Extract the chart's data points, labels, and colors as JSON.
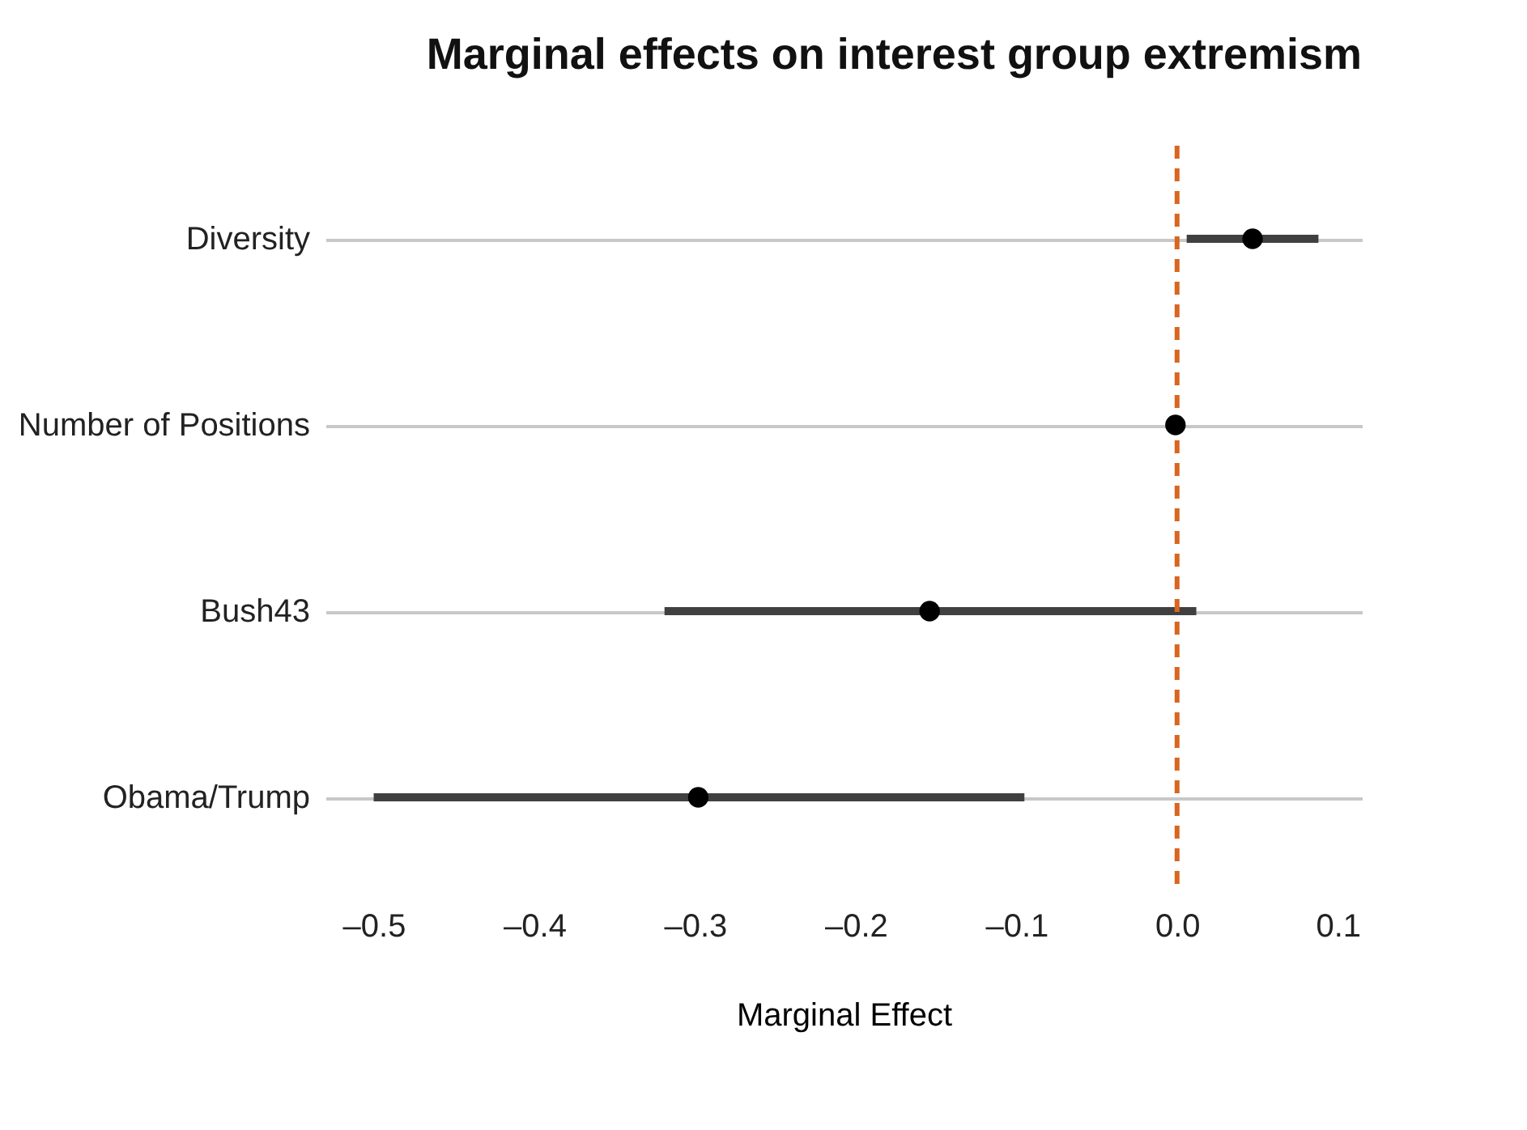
{
  "chart_data": {
    "type": "scatter",
    "orientation": "horizontal",
    "title": "Marginal effects on interest group extremism",
    "xlabel": "Marginal Effect",
    "categories": [
      "Diversity",
      "Number of Positions",
      "Bush43",
      "Obama/Trump"
    ],
    "values": [
      0.047,
      -0.001,
      -0.154,
      -0.298
    ],
    "errors": [
      [
        0.006,
        0.088
      ],
      null,
      [
        -0.319,
        0.012
      ],
      [
        -0.5,
        -0.095
      ]
    ],
    "color": "#000000",
    "xlim": [
      -0.53,
      0.115
    ],
    "xticks": [
      {
        "value": -0.5,
        "label": "–0.5"
      },
      {
        "value": -0.4,
        "label": "–0.4"
      },
      {
        "value": -0.3,
        "label": "–0.3"
      },
      {
        "value": -0.2,
        "label": "–0.2"
      },
      {
        "value": -0.1,
        "label": "–0.1"
      },
      {
        "value": 0,
        "label": "0.0"
      },
      {
        "value": 0.1,
        "label": "0.1"
      }
    ],
    "ref_lines": [
      {
        "axis": "x",
        "value": 0,
        "color": "#d9661f",
        "line_style": "dashed"
      }
    ],
    "grid": "y",
    "marker": "circle"
  }
}
